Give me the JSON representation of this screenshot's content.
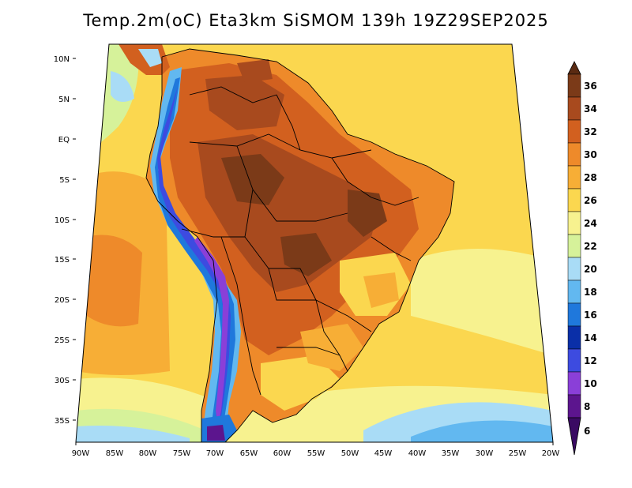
{
  "title": "Temp.2m(oC) Eta3km SiSMOM 139h 19Z29SEP2025",
  "map": {
    "variable": "2 m air temperature",
    "units": "oC",
    "lat_labels": [
      "10N",
      "5N",
      "EQ",
      "5S",
      "10S",
      "15S",
      "20S",
      "25S",
      "30S",
      "35S"
    ],
    "lon_labels": [
      "90W",
      "85W",
      "80W",
      "75W",
      "70W",
      "65W",
      "60W",
      "55W",
      "50W",
      "45W",
      "40W",
      "35W",
      "30W",
      "25W",
      "20W"
    ]
  },
  "colorbar": {
    "labels": [
      "36",
      "34",
      "32",
      "30",
      "28",
      "26",
      "24",
      "22",
      "20",
      "18",
      "16",
      "14",
      "12",
      "10",
      "8",
      "6"
    ],
    "colors": {
      "above_36": "#5a2a12",
      "34_36": "#7b3a18",
      "32_34": "#a84a1e",
      "30_32": "#d2601f",
      "28_30": "#ee8a2a",
      "26_28": "#f7ae36",
      "24_26": "#fbd74f",
      "22_24": "#f7f28f",
      "20_22": "#d6f29a",
      "18_20": "#a9dcf6",
      "16_18": "#62b8f0",
      "14_16": "#1f78dc",
      "12_14": "#0a2fa8",
      "10_12": "#3d4be0",
      "8_10": "#8a3fd8",
      "6_8": "#5c158e",
      "below_6": "#3a0a63"
    }
  }
}
